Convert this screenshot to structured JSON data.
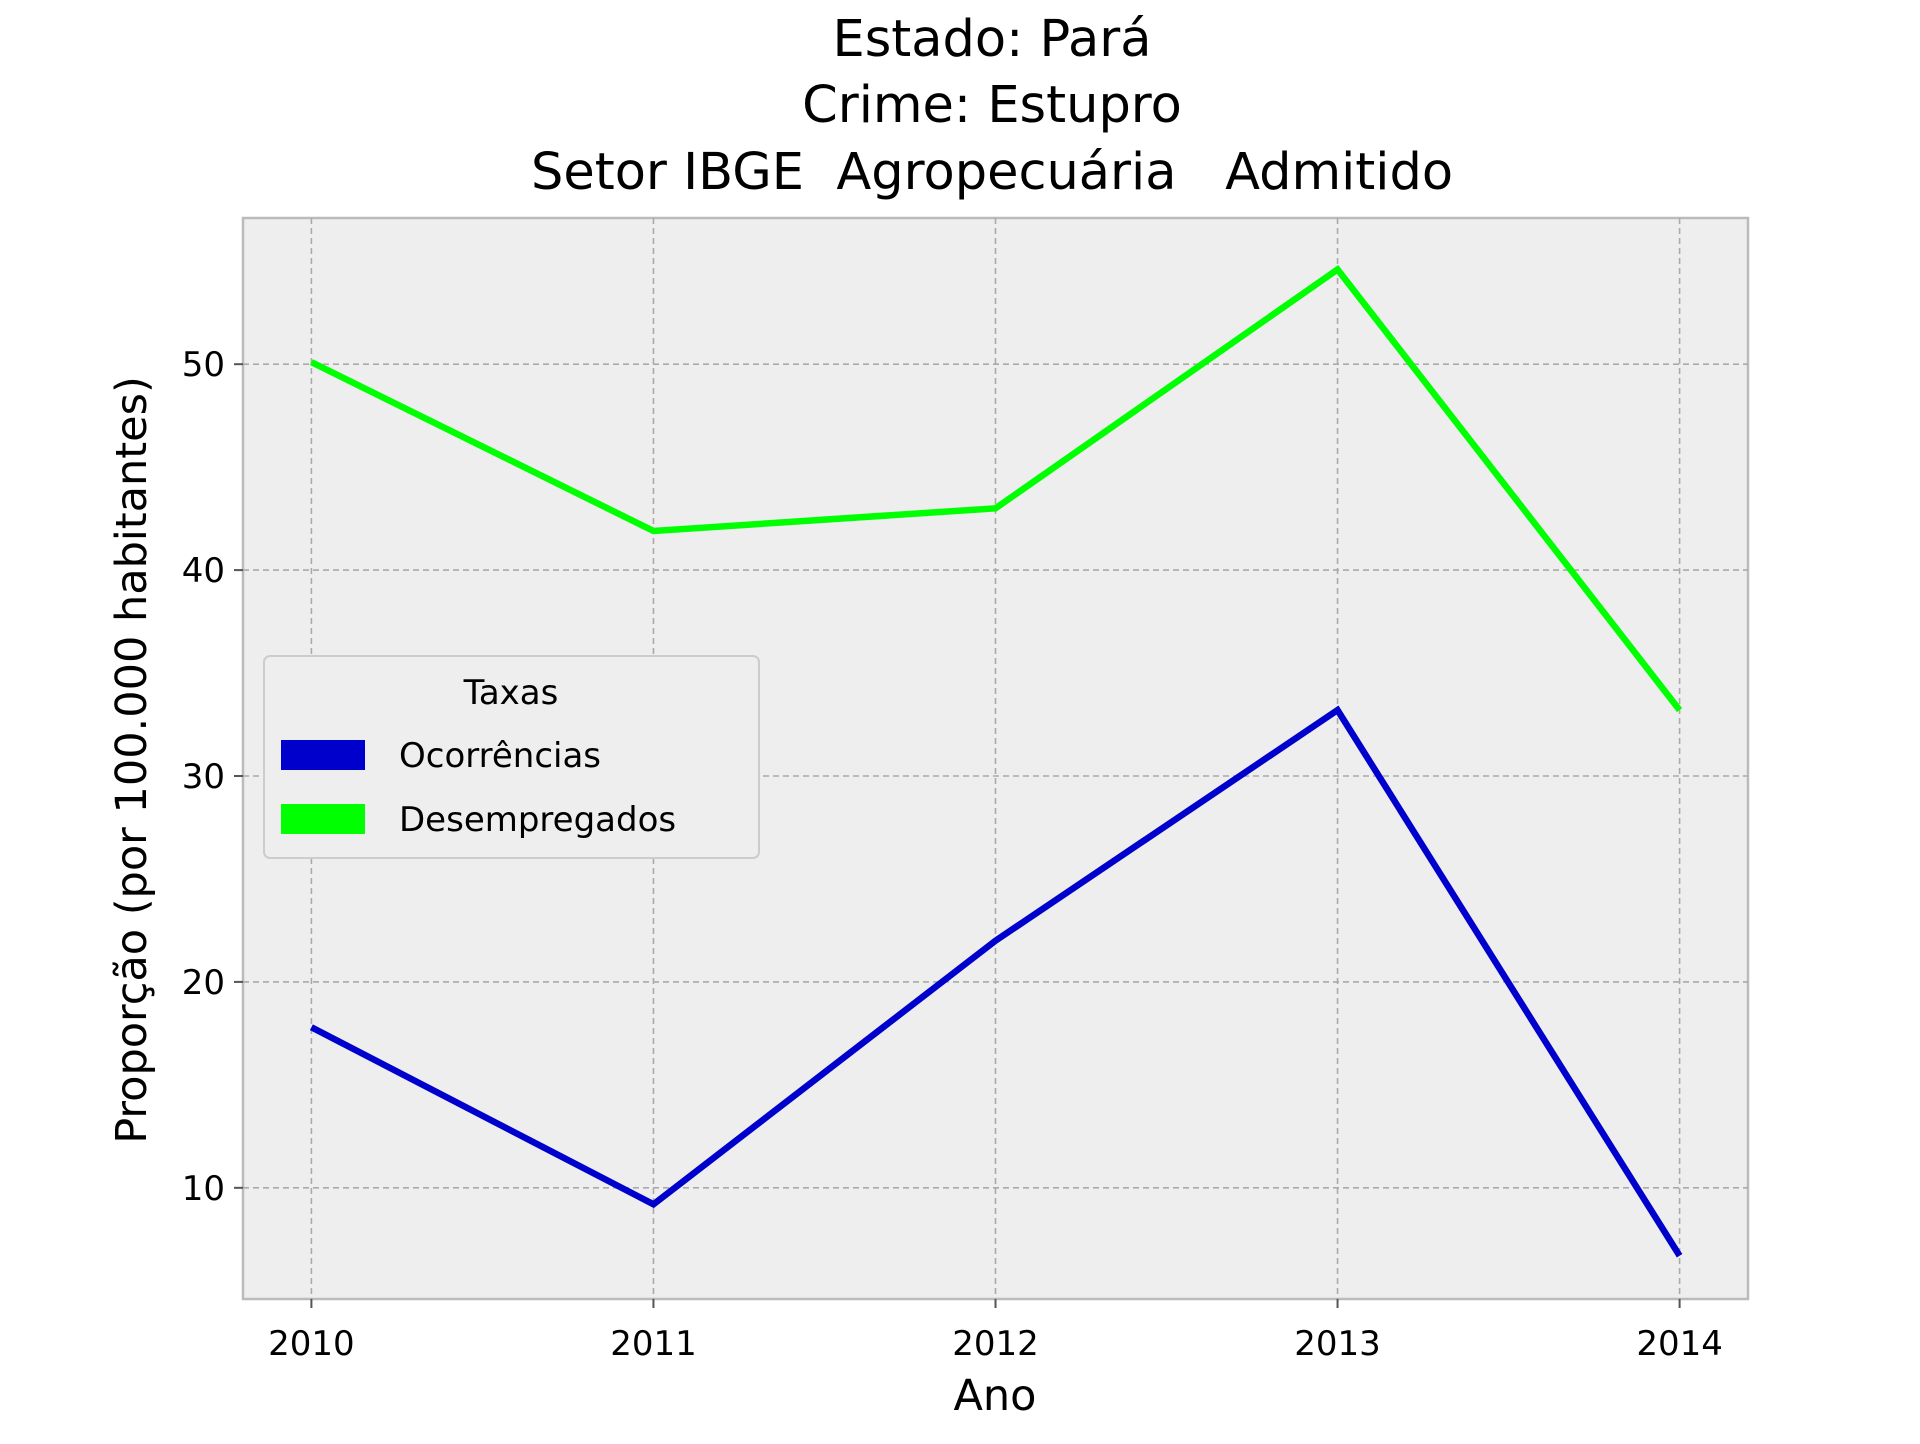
{
  "chart_data": {
    "type": "line",
    "title_lines": [
      "Estado: Pará",
      "Crime: Estupro",
      "Setor IBGE  Agropecuária   Admitido"
    ],
    "xlabel": "Ano",
    "ylabel": "Proporção (por 100.000 habitantes)",
    "x": [
      2010,
      2011,
      2012,
      2013,
      2014
    ],
    "x_tick_labels": [
      "2010",
      "2011",
      "2012",
      "2013",
      "2014"
    ],
    "xlim": [
      2009.8,
      2014.2
    ],
    "y_ticks": [
      10,
      20,
      30,
      40,
      50
    ],
    "y_tick_labels": [
      "10",
      "20",
      "30",
      "40",
      "50"
    ],
    "ylim": [
      4.6,
      57.1
    ],
    "grid": true,
    "legend": {
      "title": "Taxas",
      "placement": "center-left"
    },
    "series": [
      {
        "name": "Ocorrências",
        "color": "#0000cc",
        "values": [
          17.8,
          9.2,
          22.0,
          33.2,
          6.7
        ]
      },
      {
        "name": "Desempregados",
        "color": "#00ff00",
        "values": [
          50.1,
          41.9,
          43.0,
          54.6,
          33.2
        ]
      }
    ]
  }
}
